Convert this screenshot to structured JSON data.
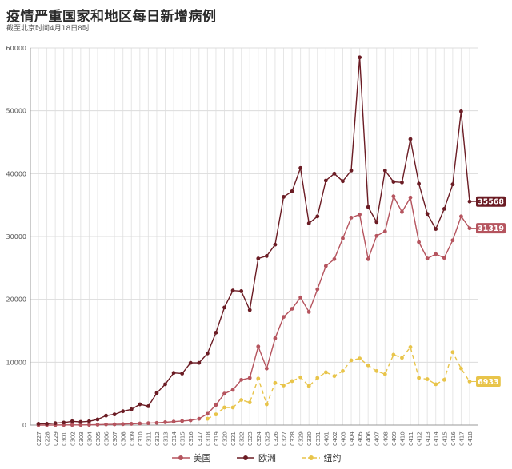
{
  "header": {
    "title": "疫情严重国家和地区每日新增病例",
    "subtitle": "截至北京时间4月18日8时"
  },
  "chart_data": {
    "type": "line",
    "title": "疫情严重国家和地区每日新增病例",
    "subtitle": "截至北京时间4月18日8时",
    "xlabel": "",
    "ylabel": "",
    "ylim": [
      0,
      60000
    ],
    "yticks": [
      0,
      10000,
      20000,
      30000,
      40000,
      50000,
      60000
    ],
    "grid": true,
    "legend_position": "bottom",
    "x": [
      "0227",
      "0228",
      "0229",
      "0301",
      "0302",
      "0303",
      "0304",
      "0305",
      "0306",
      "0307",
      "0308",
      "0309",
      "0310",
      "0311",
      "0312",
      "0313",
      "0314",
      "0315",
      "0316",
      "0317",
      "0318",
      "0319",
      "0320",
      "0321",
      "0322",
      "0323",
      "0324",
      "0325",
      "0326",
      "0327",
      "0328",
      "0329",
      "0330",
      "0331",
      "0401",
      "0402",
      "0403",
      "0404",
      "0405",
      "0406",
      "0407",
      "0408",
      "0409",
      "0410",
      "0411",
      "0412",
      "0413",
      "0414",
      "0415",
      "0416",
      "0417",
      "0418"
    ],
    "series": [
      {
        "name": "美国",
        "color": "#b5545e",
        "dash": false,
        "end_label": "31319",
        "values": [
          5,
          5,
          10,
          20,
          25,
          30,
          40,
          60,
          100,
          120,
          150,
          200,
          250,
          300,
          350,
          450,
          550,
          650,
          750,
          1000,
          1800,
          3200,
          5000,
          5600,
          7200,
          7500,
          12500,
          9000,
          13800,
          17200,
          18500,
          20300,
          18000,
          21600,
          25300,
          26400,
          29700,
          33000,
          33500,
          26400,
          30100,
          30800,
          36400,
          33900,
          36200,
          29100,
          26500,
          27200,
          26600,
          29400,
          33200,
          31319
        ]
      },
      {
        "name": "欧洲",
        "color": "#6b1c24",
        "dash": false,
        "end_label": "35568",
        "values": [
          200,
          200,
          300,
          400,
          600,
          500,
          600,
          900,
          1500,
          1700,
          2200,
          2500,
          3300,
          3000,
          5100,
          6500,
          8300,
          8200,
          9900,
          9900,
          11400,
          14700,
          18700,
          21400,
          21300,
          18300,
          26500,
          26900,
          28700,
          36300,
          37200,
          40900,
          32100,
          33200,
          38900,
          40000,
          38800,
          40500,
          58500,
          34700,
          32300,
          40500,
          38700,
          38600,
          45500,
          38400,
          33600,
          31200,
          34400,
          38300,
          49900,
          35568
        ]
      },
      {
        "name": "纽约",
        "color": "#e8c44a",
        "dash": true,
        "end_label": "6933",
        "values": [
          null,
          null,
          null,
          null,
          null,
          null,
          null,
          null,
          null,
          null,
          null,
          null,
          null,
          null,
          null,
          null,
          null,
          null,
          null,
          null,
          1000,
          1700,
          2800,
          2800,
          4000,
          3600,
          7400,
          3300,
          6700,
          6300,
          7000,
          7600,
          6200,
          7500,
          8400,
          7800,
          8600,
          10300,
          10600,
          9500,
          8600,
          8100,
          11200,
          10700,
          12400,
          7500,
          7300,
          6500,
          7200,
          11600,
          9000,
          6933
        ]
      }
    ]
  }
}
